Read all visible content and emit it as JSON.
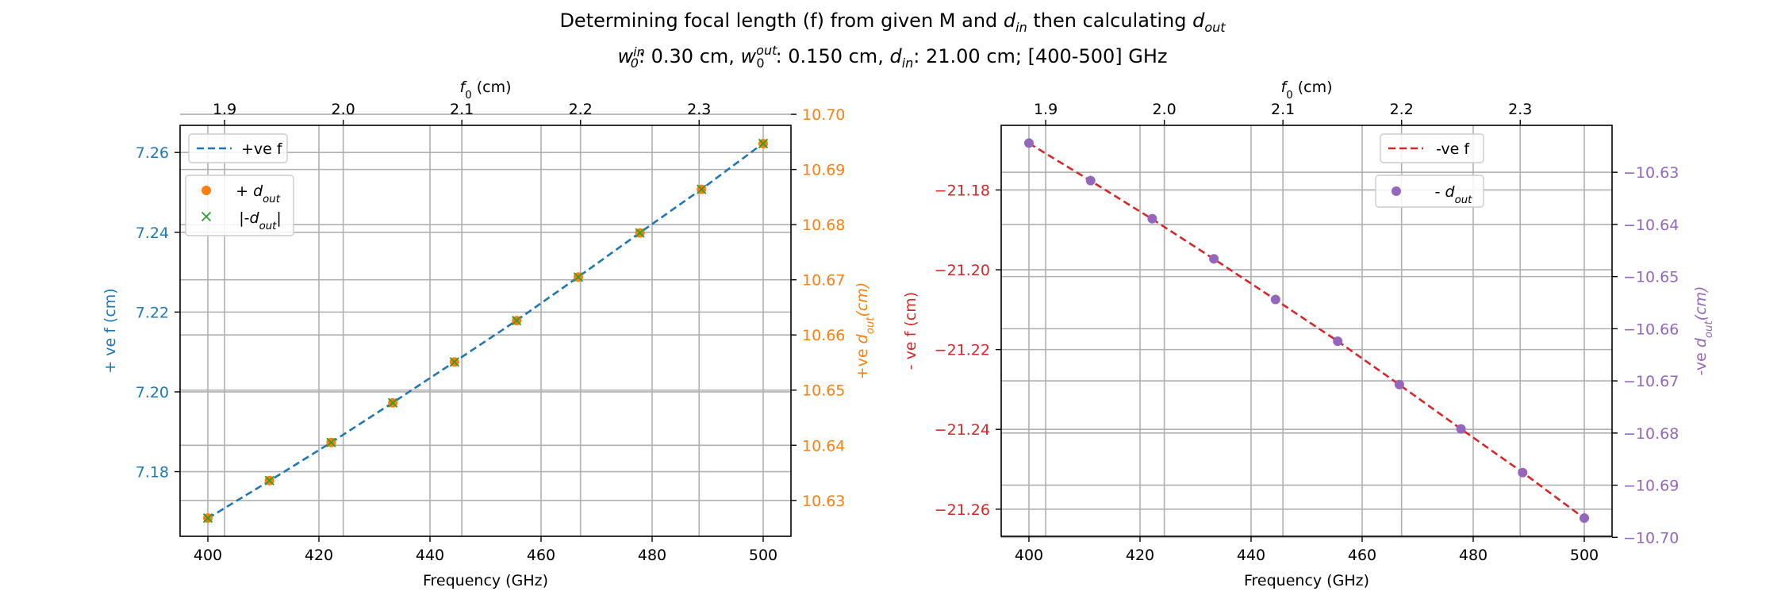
{
  "title": {
    "line1_a": "Determining focal length (f) from given M and ",
    "line1_b": " then calculating ",
    "line2": "0.30 cm, 0.150 cm, 21.00 cm; [400-500] GHz",
    "w_in": ": 0.30 cm, ",
    "w_out": ": 0.150 cm, ",
    "d_in": ": 21.00 cm; [400-500] GHz"
  },
  "colors": {
    "blue": "#1f77b4",
    "orange": "#ff7f0e",
    "green": "#2ca02c",
    "red": "#d62728",
    "purple": "#9467bd",
    "grid": "#b0b0b0"
  },
  "chart_data": [
    {
      "type": "line",
      "x": [
        400.0,
        411.1,
        422.2,
        433.3,
        444.4,
        455.6,
        466.7,
        477.8,
        488.9,
        500.0
      ],
      "xlabel": "Frequency (GHz)",
      "xlim": [
        395,
        505
      ],
      "xticks": [
        400,
        420,
        440,
        460,
        480,
        500
      ],
      "top_axis": {
        "label": "f0 (cm)",
        "xlim": [
          1.8625,
          2.3774
        ],
        "ticks": [
          1.9,
          2.0,
          2.1,
          2.2,
          2.3
        ],
        "tick_labels": [
          "1.9",
          "2.0",
          "2.1",
          "2.2",
          "2.3"
        ]
      },
      "left_axis": {
        "label": "+ ve f (cm)",
        "ylim": [
          7.1638,
          7.2668
        ],
        "ticks": [
          7.18,
          7.2,
          7.22,
          7.24,
          7.26
        ],
        "tick_labels": [
          "7.18",
          "7.20",
          "7.22",
          "7.24",
          "7.26"
        ],
        "series": [
          {
            "name": "+ve f",
            "style": "dashed",
            "values": [
              7.1683,
              7.1777,
              7.1873,
              7.1973,
              7.2075,
              7.2179,
              7.2288,
              7.2399,
              7.2508,
              7.2623
            ]
          }
        ]
      },
      "right_axis": {
        "label": "+ve dout(cm)",
        "ylim": [
          10.6235,
          10.698
        ],
        "ticks": [
          10.63,
          10.64,
          10.65,
          10.66,
          10.67,
          10.68,
          10.69,
          10.7
        ],
        "tick_labels": [
          "10.63",
          "10.64",
          "10.65",
          "10.66",
          "10.67",
          "10.68",
          "10.69",
          "10.70"
        ],
        "series": [
          {
            "name": "+ dout",
            "marker": "circle",
            "values": [
              10.6268,
              10.6336,
              10.6405,
              10.6477,
              10.6551,
              10.6626,
              10.6705,
              10.6785,
              10.6864,
              10.6947
            ]
          },
          {
            "name": "|-dout|",
            "marker": "x",
            "values": [
              10.6268,
              10.6336,
              10.6405,
              10.6477,
              10.6551,
              10.6626,
              10.6705,
              10.6785,
              10.6864,
              10.6947
            ]
          }
        ]
      },
      "legends": [
        {
          "position": "upper-left",
          "entries": [
            "+ve f"
          ]
        },
        {
          "position": "upper-left",
          "entries": [
            "+ dout",
            "|-dout|"
          ]
        }
      ]
    },
    {
      "type": "line",
      "x": [
        400.0,
        411.1,
        422.2,
        433.3,
        444.4,
        455.6,
        466.7,
        477.8,
        488.9,
        500.0
      ],
      "xlabel": "Frequency (GHz)",
      "xlim": [
        395,
        505
      ],
      "xticks": [
        400,
        420,
        440,
        460,
        480,
        500
      ],
      "top_axis": {
        "label": "f0 (cm)",
        "xlim": [
          1.8625,
          2.3774
        ],
        "ticks": [
          1.9,
          2.0,
          2.1,
          2.2,
          2.3
        ],
        "tick_labels": [
          "1.9",
          "2.0",
          "2.1",
          "2.2",
          "2.3"
        ]
      },
      "left_axis": {
        "label": "- ve f (cm)",
        "ylim": [
          -21.2668,
          -21.1638
        ],
        "ticks": [
          -21.26,
          -21.24,
          -21.22,
          -21.2,
          -21.18
        ],
        "tick_labels": [
          "−21.26",
          "−21.24",
          "−21.22",
          "−21.20",
          "−21.18"
        ],
        "series": [
          {
            "name": "-ve f",
            "style": "dashed",
            "values": [
              -21.1683,
              -21.1777,
              -21.1873,
              -21.1973,
              -21.2075,
              -21.2179,
              -21.2288,
              -21.2399,
              -21.2508,
              -21.2623
            ]
          }
        ]
      },
      "right_axis": {
        "label": "-ve dout(cm)",
        "ylim": [
          -10.6998,
          -10.621
        ],
        "ticks": [
          -10.7,
          -10.69,
          -10.68,
          -10.67,
          -10.66,
          -10.65,
          -10.64,
          -10.63
        ],
        "tick_labels": [
          "−10.70",
          "−10.69",
          "−10.68",
          "−10.67",
          "−10.66",
          "−10.65",
          "−10.64",
          "−10.63"
        ],
        "series": [
          {
            "name": "- dout",
            "marker": "circle",
            "values": [
              -10.6244,
              -10.6316,
              -10.6389,
              -10.6466,
              -10.6544,
              -10.6624,
              -10.6707,
              -10.6792,
              -10.6876,
              -10.6963
            ]
          }
        ]
      },
      "legends": [
        {
          "position": "upper-right",
          "entries": [
            "-ve f"
          ]
        },
        {
          "position": "upper-right",
          "entries": [
            "- dout"
          ]
        }
      ]
    }
  ]
}
